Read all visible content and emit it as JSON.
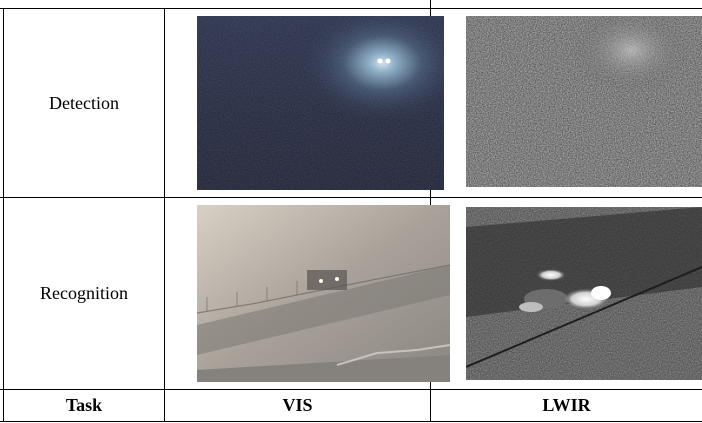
{
  "table": {
    "rows": [
      {
        "task": "Detection",
        "vis_image": "night-vis-car-headlights",
        "lwir_image": "night-lwir-noisy-scene"
      },
      {
        "task": "Recognition",
        "vis_image": "fog-vis-car-on-road",
        "lwir_image": "fog-lwir-car-thermal"
      }
    ],
    "header": {
      "task": "Task",
      "vis": "VIS",
      "lwir": "LWIR"
    }
  }
}
